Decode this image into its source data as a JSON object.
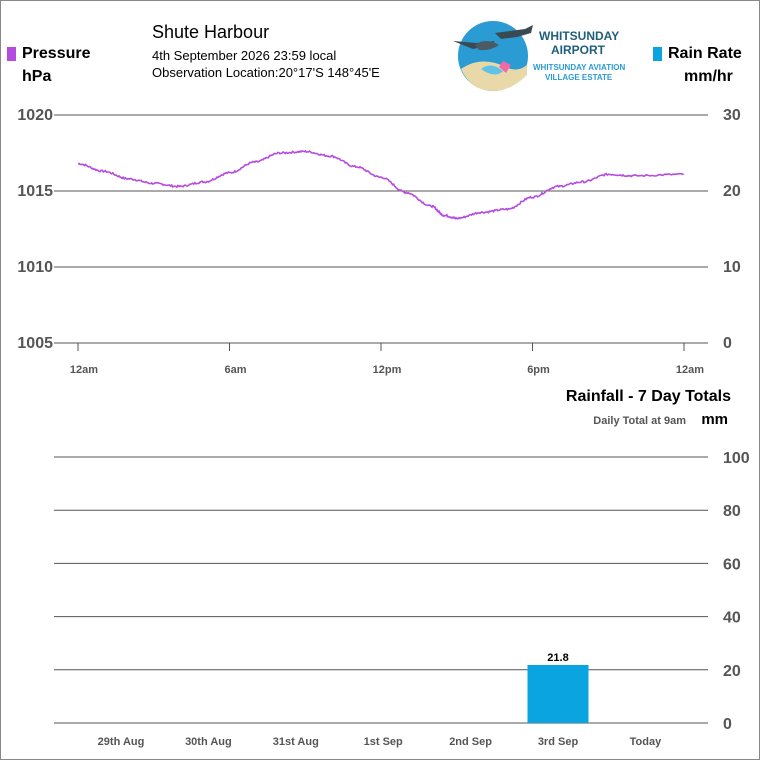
{
  "header": {
    "station": "Shute Harbour",
    "datetime": "4th September 2026  23:59 local",
    "location_label": "Observation Location:",
    "location_value": "20°17'S 148°45'E"
  },
  "logo": {
    "line1": "WHITSUNDAY",
    "line2": "AIRPORT",
    "line3": "WHITSUNDAY AVIATION",
    "line4": "VILLAGE ESTATE"
  },
  "colors": {
    "pressure": "#b44ce0",
    "rain": "#0aa4e0",
    "grid": "#555555",
    "tick_text": "#555555",
    "logo_text": "#1f5f7a",
    "logo_sub": "#2a9bd3"
  },
  "chart_data": [
    {
      "type": "line",
      "legend_left": "Pressure",
      "unit_left": "hPa",
      "legend_right": "Rain Rate",
      "unit_right": "mm/hr",
      "x_ticks": [
        "12am",
        "6am",
        "12pm",
        "6pm",
        "12am"
      ],
      "x_tick_hours": [
        0,
        6,
        12,
        18,
        24
      ],
      "y_left_ticks": [
        "1020",
        "1015",
        "1010",
        "1005"
      ],
      "y_left_range": [
        1005,
        1020
      ],
      "y_right_ticks": [
        "30",
        "20",
        "10",
        "0"
      ],
      "y_right_range": [
        0,
        30
      ],
      "grid": true,
      "series": [
        {
          "name": "Pressure",
          "axis": "left",
          "x_hours": [
            0,
            1,
            2,
            3,
            4,
            5,
            6,
            7,
            8,
            9,
            10,
            11,
            12,
            13,
            14,
            14.5,
            15,
            16,
            17,
            18,
            19,
            20,
            21,
            22,
            23.99
          ],
          "values": [
            1016.8,
            1016.3,
            1015.8,
            1015.5,
            1015.3,
            1015.6,
            1016.2,
            1016.9,
            1017.5,
            1017.6,
            1017.3,
            1016.6,
            1015.9,
            1014.9,
            1014.0,
            1013.4,
            1013.2,
            1013.6,
            1013.8,
            1014.6,
            1015.3,
            1015.6,
            1016.1,
            1016.0,
            1016.1
          ]
        },
        {
          "name": "Rain Rate",
          "axis": "right",
          "x_hours": [
            0,
            24
          ],
          "values": [
            0,
            0
          ]
        }
      ]
    },
    {
      "type": "bar",
      "title": "Rainfall - 7 Day Totals",
      "subtitle": "Daily Total at 9am",
      "unit": "mm",
      "categories": [
        "29th Aug",
        "30th Aug",
        "31st Aug",
        "1st Sep",
        "2nd Sep",
        "3rd Sep",
        "Today"
      ],
      "values": [
        0,
        0,
        0,
        0,
        0,
        21.8,
        0
      ],
      "value_labels": [
        "",
        "",
        "",
        "",
        "",
        "21.8",
        ""
      ],
      "y_ticks": [
        "100",
        "80",
        "60",
        "40",
        "20",
        "0"
      ],
      "ylim": [
        0,
        100
      ],
      "grid": true
    }
  ]
}
